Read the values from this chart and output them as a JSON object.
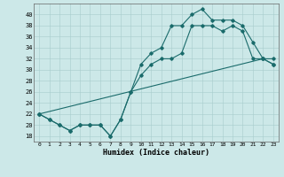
{
  "title": "",
  "xlabel": "Humidex (Indice chaleur)",
  "bg_color": "#cce8e8",
  "line_color": "#1a6b6b",
  "marker": "D",
  "markersize": 1.8,
  "linewidth": 0.8,
  "xlim": [
    -0.5,
    23.5
  ],
  "ylim": [
    17,
    42
  ],
  "yticks": [
    18,
    20,
    22,
    24,
    26,
    28,
    30,
    32,
    34,
    36,
    38,
    40
  ],
  "xticks": [
    0,
    1,
    2,
    3,
    4,
    5,
    6,
    7,
    8,
    9,
    10,
    11,
    12,
    13,
    14,
    15,
    16,
    17,
    18,
    19,
    20,
    21,
    22,
    23
  ],
  "line1_x": [
    0,
    1,
    2,
    3,
    4,
    5,
    6,
    7,
    8,
    9,
    10,
    11,
    12,
    13,
    14,
    15,
    16,
    17,
    18,
    19,
    20,
    21,
    22,
    23
  ],
  "line1_y": [
    22,
    21,
    20,
    19,
    20,
    20,
    20,
    18,
    21,
    26,
    31,
    33,
    34,
    38,
    38,
    40,
    41,
    39,
    39,
    39,
    38,
    35,
    32,
    32
  ],
  "line2_x": [
    0,
    1,
    2,
    3,
    4,
    5,
    6,
    7,
    8,
    9,
    10,
    11,
    12,
    13,
    14,
    15,
    16,
    17,
    18,
    19,
    20,
    21,
    22,
    23
  ],
  "line2_y": [
    22,
    21,
    20,
    19,
    20,
    20,
    20,
    18,
    21,
    26,
    29,
    31,
    32,
    32,
    33,
    38,
    38,
    38,
    37,
    38,
    37,
    32,
    32,
    31
  ],
  "line3_x": [
    0,
    22,
    23
  ],
  "line3_y": [
    22,
    32,
    31
  ]
}
